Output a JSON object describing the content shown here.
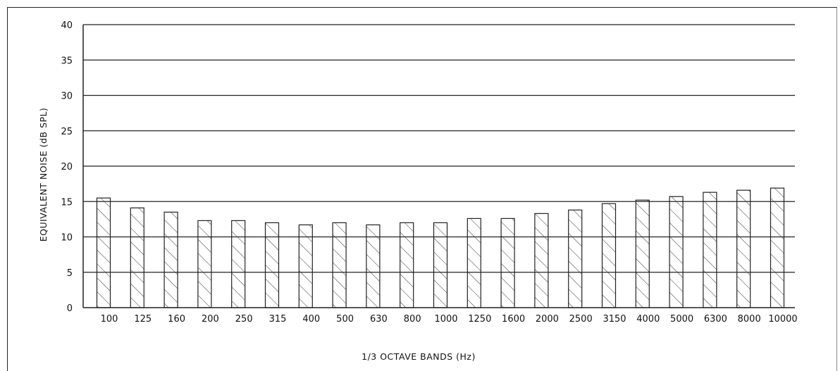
{
  "chart_data": {
    "type": "bar",
    "title": "",
    "xlabel": "1/3 OCTAVE BANDS (Hz)",
    "ylabel": "EQUIVALENT NOISE (dB SPL)",
    "categories": [
      "100",
      "125",
      "160",
      "200",
      "250",
      "315",
      "400",
      "500",
      "630",
      "800",
      "1000",
      "1250",
      "1600",
      "2000",
      "2500",
      "3150",
      "4000",
      "5000",
      "6300",
      "8000",
      "10000"
    ],
    "values": [
      15.5,
      14.1,
      13.5,
      12.3,
      12.3,
      12.0,
      11.7,
      12.0,
      11.7,
      12.0,
      12.0,
      12.6,
      12.6,
      13.3,
      13.8,
      14.7,
      15.2,
      15.7,
      16.3,
      16.6,
      16.9
    ],
    "yticks": [
      "0",
      "5",
      "10",
      "15",
      "20",
      "25",
      "30",
      "35",
      "40"
    ],
    "ylim": [
      0,
      40
    ],
    "grid": true,
    "bar_fill": "diagonal-hatch",
    "color": "#222222"
  }
}
